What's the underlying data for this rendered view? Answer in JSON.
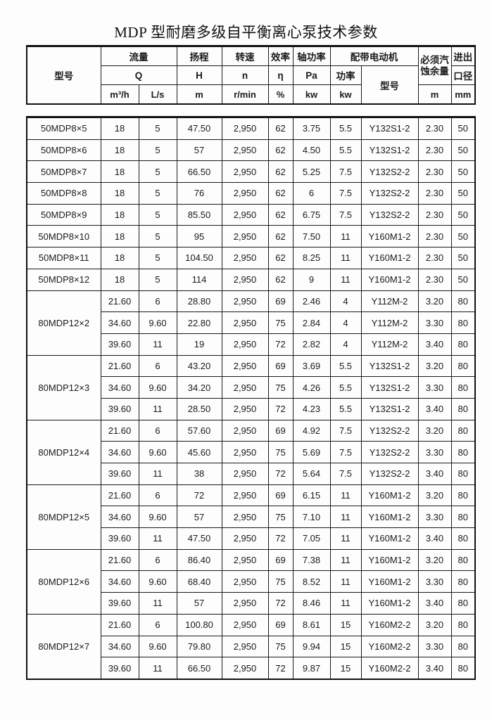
{
  "title": "MDP 型耐磨多级自平衡离心泵技术参数",
  "header": {
    "model": "型号",
    "flow": "流量",
    "flow_symbol": "Q",
    "flow_unit1": "m³/h",
    "flow_unit2": "L/s",
    "head": "扬程",
    "head_symbol": "H",
    "head_unit": "m",
    "speed": "转速",
    "speed_symbol": "n",
    "speed_unit": "r/min",
    "efficiency": "效率",
    "efficiency_symbol": "η",
    "efficiency_unit": "%",
    "shaft_power": "轴功率",
    "shaft_power_symbol": "Pa",
    "shaft_power_unit": "kw",
    "motor": "配带电动机",
    "motor_power": "功率",
    "motor_power_unit": "kw",
    "motor_model": "型号",
    "npsh_line1": "必须汽",
    "npsh_line2": "蚀余量",
    "npsh_unit": "m",
    "port_line1": "进出",
    "port_line2": "口径",
    "port_unit": "mm"
  },
  "colors": {
    "text": "#1a1a1a",
    "border": "#111111",
    "background": "#fdfdfd"
  },
  "table": {
    "groups": [
      {
        "model": "50MDP8×5",
        "rows": [
          [
            "18",
            "5",
            "47.50",
            "2,950",
            "62",
            "3.75",
            "5.5",
            "Y132S1-2",
            "2.30",
            "50"
          ]
        ]
      },
      {
        "model": "50MDP8×6",
        "rows": [
          [
            "18",
            "5",
            "57",
            "2,950",
            "62",
            "4.50",
            "5.5",
            "Y132S1-2",
            "2.30",
            "50"
          ]
        ]
      },
      {
        "model": "50MDP8×7",
        "rows": [
          [
            "18",
            "5",
            "66.50",
            "2,950",
            "62",
            "5.25",
            "7.5",
            "Y132S2-2",
            "2.30",
            "50"
          ]
        ]
      },
      {
        "model": "50MDP8×8",
        "rows": [
          [
            "18",
            "5",
            "76",
            "2,950",
            "62",
            "6",
            "7.5",
            "Y132S2-2",
            "2.30",
            "50"
          ]
        ]
      },
      {
        "model": "50MDP8×9",
        "rows": [
          [
            "18",
            "5",
            "85.50",
            "2,950",
            "62",
            "6.75",
            "7.5",
            "Y132S2-2",
            "2.30",
            "50"
          ]
        ]
      },
      {
        "model": "50MDP8×10",
        "rows": [
          [
            "18",
            "5",
            "95",
            "2,950",
            "62",
            "7.50",
            "11",
            "Y160M1-2",
            "2.30",
            "50"
          ]
        ]
      },
      {
        "model": "50MDP8×11",
        "rows": [
          [
            "18",
            "5",
            "104.50",
            "2,950",
            "62",
            "8.25",
            "11",
            "Y160M1-2",
            "2.30",
            "50"
          ]
        ]
      },
      {
        "model": "50MDP8×12",
        "rows": [
          [
            "18",
            "5",
            "114",
            "2,950",
            "62",
            "9",
            "11",
            "Y160M1-2",
            "2.30",
            "50"
          ]
        ]
      },
      {
        "model": "80MDP12×2",
        "rows": [
          [
            "21.60",
            "6",
            "28.80",
            "2,950",
            "69",
            "2.46",
            "4",
            "Y112M-2",
            "3.20",
            "80"
          ],
          [
            "34.60",
            "9.60",
            "22.80",
            "2,950",
            "75",
            "2.84",
            "4",
            "Y112M-2",
            "3.30",
            "80"
          ],
          [
            "39.60",
            "11",
            "19",
            "2,950",
            "72",
            "2.82",
            "4",
            "Y112M-2",
            "3.40",
            "80"
          ]
        ]
      },
      {
        "model": "80MDP12×3",
        "rows": [
          [
            "21.60",
            "6",
            "43.20",
            "2,950",
            "69",
            "3.69",
            "5.5",
            "Y132S1-2",
            "3.20",
            "80"
          ],
          [
            "34.60",
            "9.60",
            "34.20",
            "2,950",
            "75",
            "4.26",
            "5.5",
            "Y132S1-2",
            "3.30",
            "80"
          ],
          [
            "39.60",
            "11",
            "28.50",
            "2,950",
            "72",
            "4.23",
            "5.5",
            "Y132S1-2",
            "3.40",
            "80"
          ]
        ]
      },
      {
        "model": "80MDP12×4",
        "rows": [
          [
            "21.60",
            "6",
            "57.60",
            "2,950",
            "69",
            "4.92",
            "7.5",
            "Y132S2-2",
            "3.20",
            "80"
          ],
          [
            "34.60",
            "9.60",
            "45.60",
            "2,950",
            "75",
            "5.69",
            "7.5",
            "Y132S2-2",
            "3.30",
            "80"
          ],
          [
            "39.60",
            "11",
            "38",
            "2,950",
            "72",
            "5.64",
            "7.5",
            "Y132S2-2",
            "3.40",
            "80"
          ]
        ]
      },
      {
        "model": "80MDP12×5",
        "rows": [
          [
            "21.60",
            "6",
            "72",
            "2,950",
            "69",
            "6.15",
            "11",
            "Y160M1-2",
            "3.20",
            "80"
          ],
          [
            "34.60",
            "9.60",
            "57",
            "2,950",
            "75",
            "7.10",
            "11",
            "Y160M1-2",
            "3.30",
            "80"
          ],
          [
            "39.60",
            "11",
            "47.50",
            "2,950",
            "72",
            "7.05",
            "11",
            "Y160M1-2",
            "3.40",
            "80"
          ]
        ]
      },
      {
        "model": "80MDP12×6",
        "rows": [
          [
            "21.60",
            "6",
            "86.40",
            "2,950",
            "69",
            "7.38",
            "11",
            "Y160M1-2",
            "3.20",
            "80"
          ],
          [
            "34.60",
            "9.60",
            "68.40",
            "2,950",
            "75",
            "8.52",
            "11",
            "Y160M1-2",
            "3.30",
            "80"
          ],
          [
            "39.60",
            "11",
            "57",
            "2,950",
            "72",
            "8.46",
            "11",
            "Y160M1-2",
            "3.40",
            "80"
          ]
        ]
      },
      {
        "model": "80MDP12×7",
        "rows": [
          [
            "21.60",
            "6",
            "100.80",
            "2,950",
            "69",
            "8.61",
            "15",
            "Y160M2-2",
            "3.20",
            "80"
          ],
          [
            "34.60",
            "9.60",
            "79.80",
            "2,950",
            "75",
            "9.94",
            "15",
            "Y160M2-2",
            "3.30",
            "80"
          ],
          [
            "39.60",
            "11",
            "66.50",
            "2,950",
            "72",
            "9.87",
            "15",
            "Y160M2-2",
            "3.40",
            "80"
          ]
        ]
      }
    ]
  }
}
